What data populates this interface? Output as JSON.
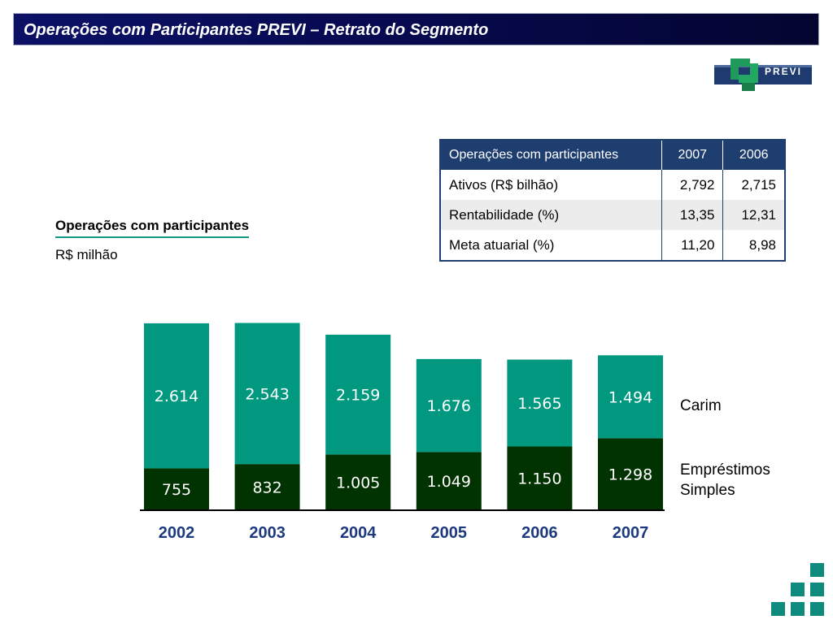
{
  "header": {
    "title": "Operações com Participantes PREVI – Retrato do Segmento"
  },
  "logo": {
    "text": "PREVI",
    "icon": "previ-logo-icon",
    "colors": {
      "green": "#1f9a5a",
      "navy": "#1e3a6e"
    }
  },
  "table": {
    "headers": [
      "Operações com participantes",
      "2007",
      "2006"
    ],
    "rows": [
      {
        "label": "Ativos (R$ bilhão)",
        "v2007": "2,792",
        "v2006": "2,715"
      },
      {
        "label": "Rentabilidade (%)",
        "v2007": "13,35",
        "v2006": "12,31"
      },
      {
        "label": "Meta atuarial (%)",
        "v2007": "11,20",
        "v2006": "8,98"
      }
    ]
  },
  "chart_data": {
    "type": "bar",
    "stacked": true,
    "title": "Operações com participantes",
    "subtitle": "R$ milhão",
    "categories": [
      "2002",
      "2003",
      "2004",
      "2005",
      "2006",
      "2007"
    ],
    "series": [
      {
        "name": "Empréstimos Simples",
        "values": [
          755,
          832,
          1005,
          1049,
          1150,
          1298
        ],
        "labels": [
          "755",
          "832",
          "1.005",
          "1.049",
          "1.150",
          "1.298"
        ],
        "color": "#003300"
      },
      {
        "name": "Carim",
        "values": [
          2614,
          2543,
          2159,
          1676,
          1565,
          1494
        ],
        "labels": [
          "2.614",
          "2.543",
          "2.159",
          "1.676",
          "1.565",
          "1.494"
        ],
        "color": "#009980"
      }
    ],
    "legend": [
      "Carim",
      "Empréstimos\nSimples"
    ],
    "legend_placement": "right",
    "grid": false,
    "colors": {
      "carim": "#009980",
      "emprestimos": "#003300",
      "axis_labels": "#1e3a7e"
    }
  }
}
